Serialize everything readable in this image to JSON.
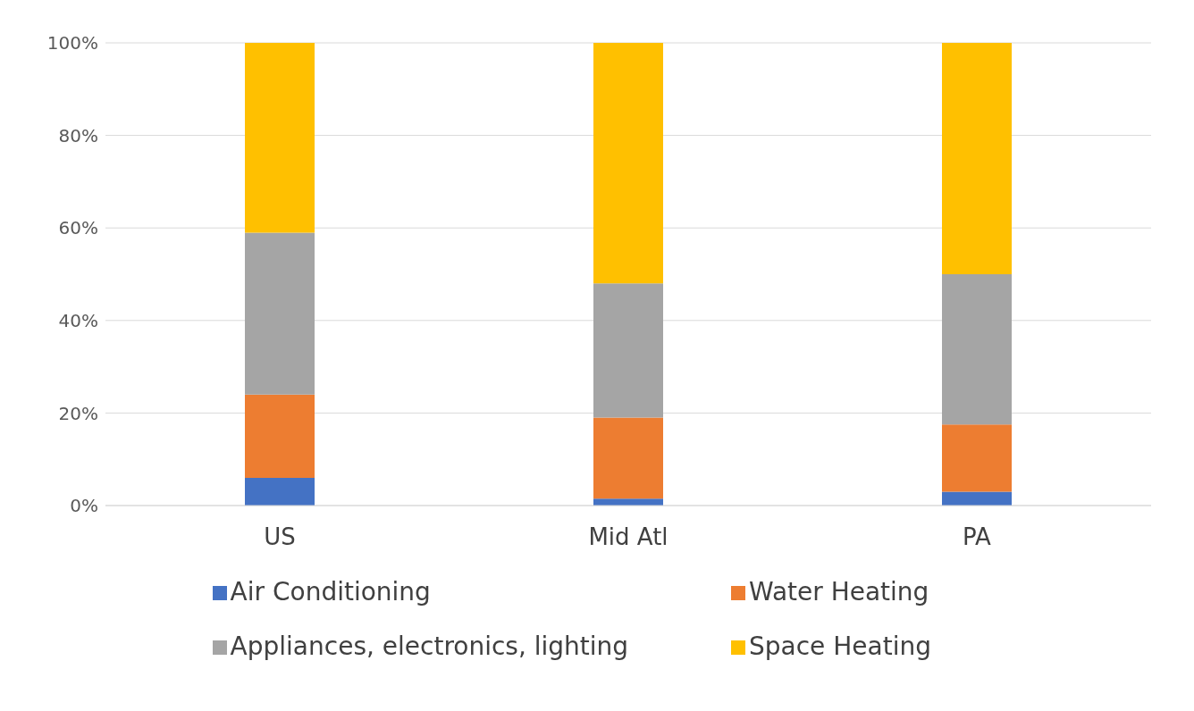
{
  "chart_data": {
    "type": "bar",
    "stacked": true,
    "categories": [
      "US",
      "Mid Atl",
      "PA"
    ],
    "series": [
      {
        "name": "Air Conditioning",
        "color": "#4472c4",
        "values": [
          6,
          1.5,
          3
        ]
      },
      {
        "name": "Water Heating",
        "color": "#ed7d31",
        "values": [
          18,
          17.5,
          14.5
        ]
      },
      {
        "name": "Appliances, electronics, lighting",
        "color": "#a5a5a5",
        "values": [
          35,
          29,
          32.5
        ]
      },
      {
        "name": "Space Heating",
        "color": "#ffc000",
        "values": [
          41,
          52,
          50
        ]
      }
    ],
    "ylim": [
      0,
      100
    ],
    "yticks": [
      {
        "value": 0,
        "label": "0%"
      },
      {
        "value": 20,
        "label": "20%"
      },
      {
        "value": 40,
        "label": "40%"
      },
      {
        "value": 60,
        "label": "60%"
      },
      {
        "value": 80,
        "label": "80%"
      },
      {
        "value": 100,
        "label": "100%"
      }
    ],
    "grid": "y",
    "legend": "bottom"
  }
}
